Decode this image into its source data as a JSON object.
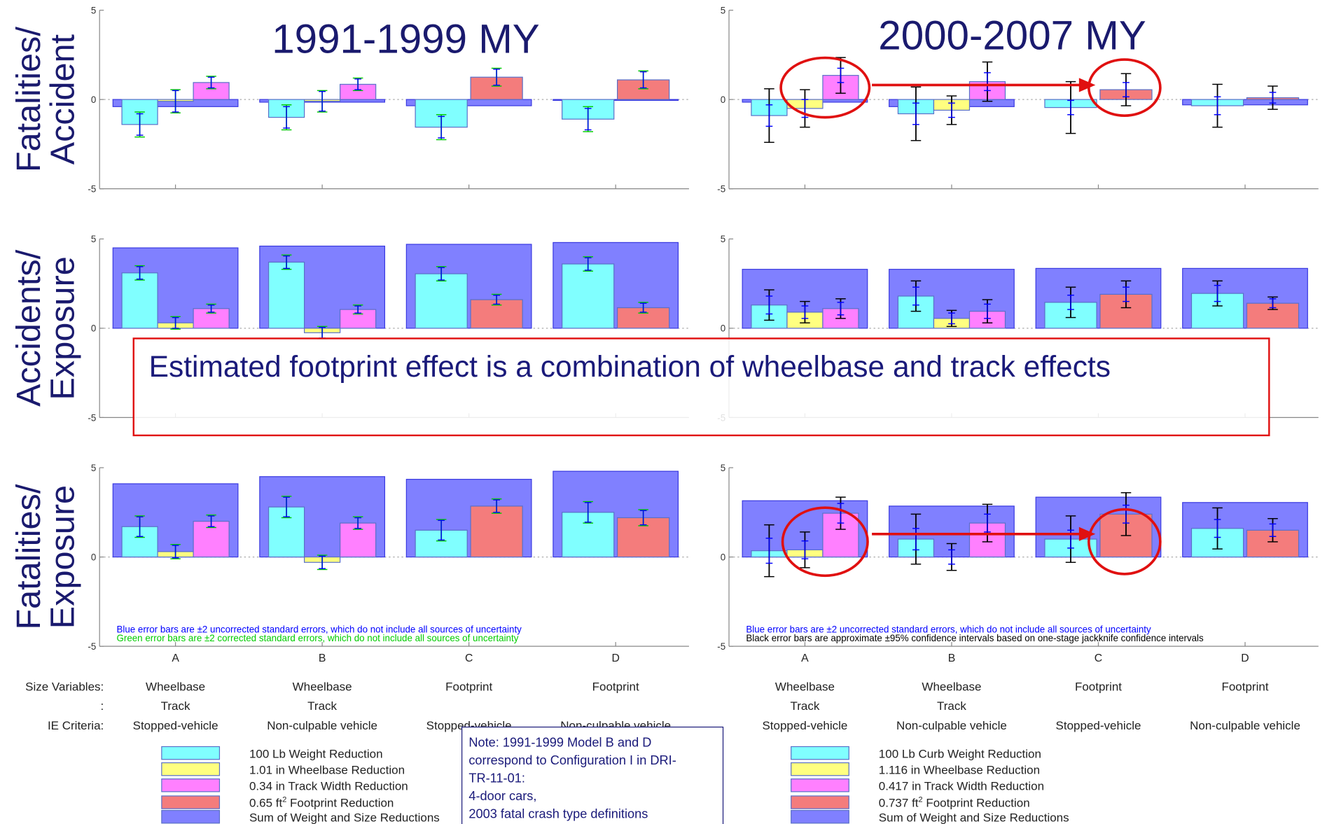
{
  "titles": [
    "1991-1999 MY",
    "2000-2007 MY"
  ],
  "row_labels": [
    [
      "Fatalities/",
      "Accident"
    ],
    [
      "Accidents/",
      "Exposure"
    ],
    [
      "Fatalities/",
      "Exposure"
    ]
  ],
  "annotation": "Estimated footprint effect is a combination of wheelbase and track effects",
  "chart_data": [
    {
      "type": "bar",
      "ylim": [
        -5,
        5
      ],
      "yticks": [
        -5,
        0,
        5
      ],
      "error_colors": [
        "#0000ff",
        "#00cc00"
      ],
      "series": [
        {
          "color": "#80ffff",
          "values": [
            -1.4,
            -1.0,
            -1.55,
            -1.1
          ],
          "errors": [
            [
              0.6,
              0.6,
              0.6,
              0.6
            ],
            [
              0.7,
              0.7,
              0.7,
              0.7
            ]
          ]
        },
        {
          "color": "#ffff80",
          "values": [
            -0.1,
            -0.1,
            null,
            null
          ],
          "errors": [
            [
              0.6,
              0.55,
              null,
              null
            ],
            [
              0.65,
              0.6,
              null,
              null
            ]
          ]
        },
        {
          "color": "#ff80ff",
          "values": [
            0.95,
            0.85,
            null,
            null
          ],
          "errors": [
            [
              0.3,
              0.3,
              null,
              null
            ],
            [
              0.35,
              0.35,
              null,
              null
            ]
          ]
        },
        {
          "color": "#f47c7c",
          "values": [
            null,
            null,
            1.25,
            1.1
          ],
          "errors": [
            [
              null,
              null,
              0.45,
              0.45
            ],
            [
              null,
              null,
              0.5,
              0.5
            ]
          ]
        },
        {
          "color": "#8080ff",
          "values": [
            -0.4,
            -0.15,
            -0.35,
            -0.05
          ]
        }
      ]
    },
    {
      "type": "bar",
      "ylim": [
        -5,
        5
      ],
      "yticks": [
        -5,
        0,
        5
      ],
      "error_colors": [
        "#0000ff",
        "#000000"
      ],
      "series": [
        {
          "color": "#80ffff",
          "values": [
            -0.9,
            -0.8,
            -0.45,
            -0.35
          ],
          "errors": [
            [
              0.6,
              0.6,
              0.4,
              0.5
            ],
            [
              1.5,
              1.5,
              1.45,
              1.2
            ]
          ]
        },
        {
          "color": "#ffff80",
          "values": [
            -0.5,
            -0.6,
            null,
            null
          ],
          "errors": [
            [
              0.5,
              0.4,
              null,
              null
            ],
            [
              1.05,
              0.8,
              null,
              null
            ]
          ]
        },
        {
          "color": "#ff80ff",
          "values": [
            1.35,
            1.0,
            null,
            null
          ],
          "errors": [
            [
              0.4,
              0.5,
              null,
              null
            ],
            [
              1.0,
              1.1,
              null,
              null
            ]
          ]
        },
        {
          "color": "#f47c7c",
          "values": [
            null,
            null,
            0.55,
            0.1
          ],
          "errors": [
            [
              null,
              null,
              0.4,
              0.3
            ],
            [
              null,
              null,
              0.9,
              0.65
            ]
          ]
        },
        {
          "color": "#8080ff",
          "values": [
            -0.15,
            -0.4,
            0,
            -0.3
          ]
        }
      ]
    },
    {
      "type": "bar",
      "ylim": [
        -5,
        5
      ],
      "yticks": [
        -5,
        0,
        5
      ],
      "error_colors": [
        "#0000ff",
        "#00cc00"
      ],
      "series": [
        {
          "color": "#80ffff",
          "values": [
            3.1,
            3.7,
            3.05,
            3.6
          ],
          "errors": [
            [
              0.35,
              0.35,
              0.35,
              0.35
            ],
            [
              0.4,
              0.4,
              0.4,
              0.4
            ]
          ]
        },
        {
          "color": "#ffff80",
          "values": [
            0.3,
            -0.25,
            null,
            null
          ],
          "errors": [
            [
              0.3,
              0.3,
              null,
              null
            ],
            [
              0.35,
              0.35,
              null,
              null
            ]
          ]
        },
        {
          "color": "#ff80ff",
          "values": [
            1.1,
            1.05,
            null,
            null
          ],
          "errors": [
            [
              0.2,
              0.2,
              null,
              null
            ],
            [
              0.25,
              0.25,
              null,
              null
            ]
          ]
        },
        {
          "color": "#f47c7c",
          "values": [
            null,
            null,
            1.6,
            1.15
          ],
          "errors": [
            [
              null,
              null,
              0.25,
              0.25
            ],
            [
              null,
              null,
              0.3,
              0.3
            ]
          ]
        },
        {
          "color": "#8080ff",
          "values": [
            4.5,
            4.6,
            4.7,
            4.8
          ]
        }
      ]
    },
    {
      "type": "bar",
      "ylim": [
        -5,
        5
      ],
      "yticks": [
        -5,
        0,
        5
      ],
      "error_colors": [
        "#0000ff",
        "#000000"
      ],
      "series": [
        {
          "color": "#80ffff",
          "values": [
            1.3,
            1.8,
            1.45,
            1.95
          ],
          "errors": [
            [
              0.5,
              0.5,
              0.4,
              0.45
            ],
            [
              0.85,
              0.85,
              0.85,
              0.7
            ]
          ]
        },
        {
          "color": "#ffff80",
          "values": [
            0.9,
            0.55,
            null,
            null
          ],
          "errors": [
            [
              0.35,
              0.3,
              null,
              null
            ],
            [
              0.6,
              0.45,
              null,
              null
            ]
          ]
        },
        {
          "color": "#ff80ff",
          "values": [
            1.1,
            0.95,
            null,
            null
          ],
          "errors": [
            [
              0.35,
              0.4,
              null,
              null
            ],
            [
              0.55,
              0.65,
              null,
              null
            ]
          ]
        },
        {
          "color": "#f47c7c",
          "values": [
            null,
            null,
            1.9,
            1.4
          ],
          "errors": [
            [
              null,
              null,
              0.4,
              0.25
            ],
            [
              null,
              null,
              0.75,
              0.35
            ]
          ]
        },
        {
          "color": "#8080ff",
          "values": [
            3.3,
            3.3,
            3.35,
            3.35
          ]
        }
      ]
    },
    {
      "type": "bar",
      "ylim": [
        -5,
        5
      ],
      "yticks": [
        -5,
        0,
        5
      ],
      "error_colors": [
        "#0000ff",
        "#00cc00"
      ],
      "categories": [
        "A",
        "B",
        "C",
        "D"
      ],
      "notes": [
        {
          "text": "Blue error bars are ±2 uncorrected standard errors, which do not include all sources of uncertainty",
          "color": "#0000ff"
        },
        {
          "text": "Green error bars are ±2 corrected standard errors, which do not include all sources of uncertainty",
          "color": "#00cc00"
        }
      ],
      "series": [
        {
          "color": "#80ffff",
          "values": [
            1.7,
            2.8,
            1.5,
            2.5
          ],
          "errors": [
            [
              0.55,
              0.55,
              0.55,
              0.55
            ],
            [
              0.6,
              0.6,
              0.6,
              0.6
            ]
          ]
        },
        {
          "color": "#ffff80",
          "values": [
            0.3,
            -0.3,
            null,
            null
          ],
          "errors": [
            [
              0.35,
              0.35,
              null,
              null
            ],
            [
              0.4,
              0.4,
              null,
              null
            ]
          ]
        },
        {
          "color": "#ff80ff",
          "values": [
            2.0,
            1.9,
            null,
            null
          ],
          "errors": [
            [
              0.3,
              0.3,
              null,
              null
            ],
            [
              0.35,
              0.35,
              null,
              null
            ]
          ]
        },
        {
          "color": "#f47c7c",
          "values": [
            null,
            null,
            2.85,
            2.2
          ],
          "errors": [
            [
              null,
              null,
              0.35,
              0.4
            ],
            [
              null,
              null,
              0.4,
              0.45
            ]
          ]
        },
        {
          "color": "#8080ff",
          "values": [
            4.1,
            4.5,
            4.35,
            4.8
          ]
        }
      ]
    },
    {
      "type": "bar",
      "ylim": [
        -5,
        5
      ],
      "yticks": [
        -5,
        0,
        5
      ],
      "error_colors": [
        "#0000ff",
        "#000000"
      ],
      "categories": [
        "A",
        "B",
        "C",
        "D"
      ],
      "notes": [
        {
          "text": "Blue error bars are ±2 uncorrected standard errors, which do not include all sources of uncertainty",
          "color": "#0000ff"
        },
        {
          "text": "Black error bars are approximate ±95% confidence intervals based on one-stage jackknife confidence intervals",
          "color": "#000000"
        }
      ],
      "series": [
        {
          "color": "#80ffff",
          "values": [
            0.35,
            1.0,
            1.0,
            1.6
          ],
          "errors": [
            [
              0.7,
              0.6,
              0.5,
              0.5
            ],
            [
              1.45,
              1.4,
              1.3,
              1.15
            ]
          ]
        },
        {
          "color": "#ffff80",
          "values": [
            0.4,
            0,
            null,
            null
          ],
          "errors": [
            [
              0.5,
              0.4,
              null,
              null
            ],
            [
              1.0,
              0.75,
              null,
              null
            ]
          ]
        },
        {
          "color": "#ff80ff",
          "values": [
            2.45,
            1.9,
            null,
            null
          ],
          "errors": [
            [
              0.55,
              0.5,
              null,
              null
            ],
            [
              0.9,
              1.05,
              null,
              null
            ]
          ]
        },
        {
          "color": "#f47c7c",
          "values": [
            null,
            null,
            2.4,
            1.5
          ],
          "errors": [
            [
              null,
              null,
              0.5,
              0.35
            ],
            [
              null,
              null,
              1.2,
              0.65
            ]
          ]
        },
        {
          "color": "#8080ff",
          "values": [
            3.15,
            2.85,
            3.35,
            3.05
          ]
        }
      ]
    }
  ],
  "size_table": {
    "row_labels": [
      "Size Variables:",
      ":",
      "IE Criteria:"
    ],
    "panels": [
      [
        [
          "Wheelbase",
          "Track",
          "Stopped-vehicle"
        ],
        [
          "Wheelbase",
          "Track",
          "Non-culpable vehicle"
        ],
        [
          "Footprint",
          null,
          "Stopped-vehicle"
        ],
        [
          "Footprint",
          null,
          "Non-culpable vehicle"
        ]
      ],
      [
        [
          "Wheelbase",
          "Track",
          "Stopped-vehicle"
        ],
        [
          "Wheelbase",
          "Track",
          "Non-culpable vehicle"
        ],
        [
          "Footprint",
          null,
          "Stopped-vehicle"
        ],
        [
          "Footprint",
          null,
          "Non-culpable vehicle"
        ]
      ]
    ]
  },
  "legends": [
    [
      {
        "color": "#80ffff",
        "label": "100 Lb Weight Reduction"
      },
      {
        "color": "#ffff80",
        "label": "1.01 in Wheelbase Reduction"
      },
      {
        "color": "#ff80ff",
        "label": "0.34 in Track Width Reduction"
      },
      {
        "color": "#f47c7c",
        "label": "0.65 ft",
        "sup": "2",
        "label_end": " Footprint Reduction"
      },
      {
        "color": "#8080ff",
        "label": "Sum of Weight and Size Reductions"
      }
    ],
    [
      {
        "color": "#80ffff",
        "label": "100 Lb Curb Weight Reduction"
      },
      {
        "color": "#ffff80",
        "label": "1.116 in Wheelbase Reduction"
      },
      {
        "color": "#ff80ff",
        "label": "0.417 in Track Width Reduction"
      },
      {
        "color": "#f47c7c",
        "label": "0.737 ft",
        "sup": "2",
        "label_end": " Footprint Reduction"
      },
      {
        "color": "#8080ff",
        "label": "Sum of Weight and Size Reductions"
      }
    ]
  ],
  "note": [
    "Note: 1991-1999 Model B and D",
    "correspond to Configuration I in DRI-",
    "TR-11-01:",
    "4-door cars,",
    "2003 fatal crash type definitions"
  ]
}
